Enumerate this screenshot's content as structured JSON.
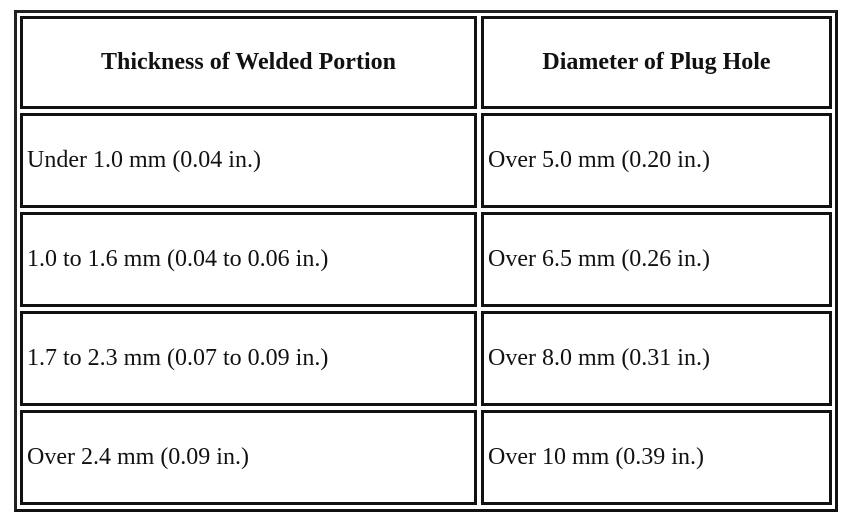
{
  "table": {
    "header": [
      "Thickness of Welded Portion",
      "Diameter of Plug Hole"
    ],
    "rows": [
      [
        "Under 1.0 mm (0.04 in.)",
        "Over 5.0 mm (0.20 in.)"
      ],
      [
        "1.0 to 1.6 mm (0.04 to 0.06 in.)",
        "Over 6.5 mm (0.26 in.)"
      ],
      [
        "1.7 to 2.3 mm (0.07 to 0.09 in.)",
        "Over 8.0 mm (0.31 in.)"
      ],
      [
        "Over 2.4 mm (0.09 in.)",
        "Over 10 mm (0.39 in.)"
      ]
    ]
  }
}
